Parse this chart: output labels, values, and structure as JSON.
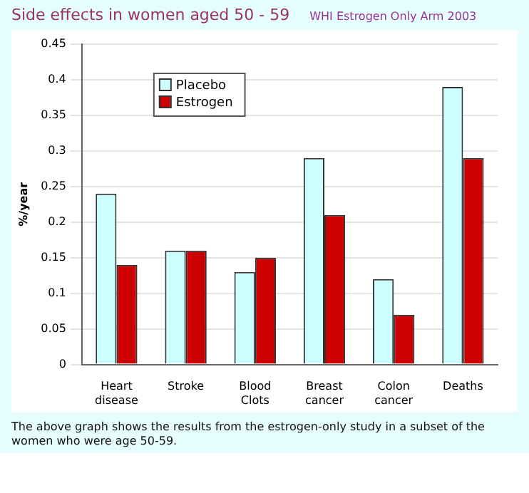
{
  "chart_data": {
    "type": "bar",
    "title": "Side effects in women aged 50 - 59",
    "subtitle": "WHI Estrogen Only Arm 2003",
    "ylabel": "%/year",
    "categories": [
      "Heart disease",
      "Stroke",
      "Blood Clots",
      "Breast cancer",
      "Colon cancer",
      "Deaths"
    ],
    "series": [
      {
        "name": "Placebo",
        "color": "#ccffff",
        "values": [
          0.24,
          0.16,
          0.13,
          0.29,
          0.12,
          0.39
        ]
      },
      {
        "name": "Estrogen",
        "color": "#cc0000",
        "values": [
          0.14,
          0.16,
          0.15,
          0.21,
          0.07,
          0.29
        ]
      }
    ],
    "ylim": [
      0,
      0.45
    ],
    "yticks": [
      0,
      0.05,
      0.1,
      0.15,
      0.2,
      0.25,
      0.3,
      0.35,
      0.4,
      0.45
    ],
    "grid": "y",
    "legend": "top left",
    "annotations": [
      "The above graph shows the results from the estrogen-only study in a subset of the women who were age 50-59."
    ]
  }
}
